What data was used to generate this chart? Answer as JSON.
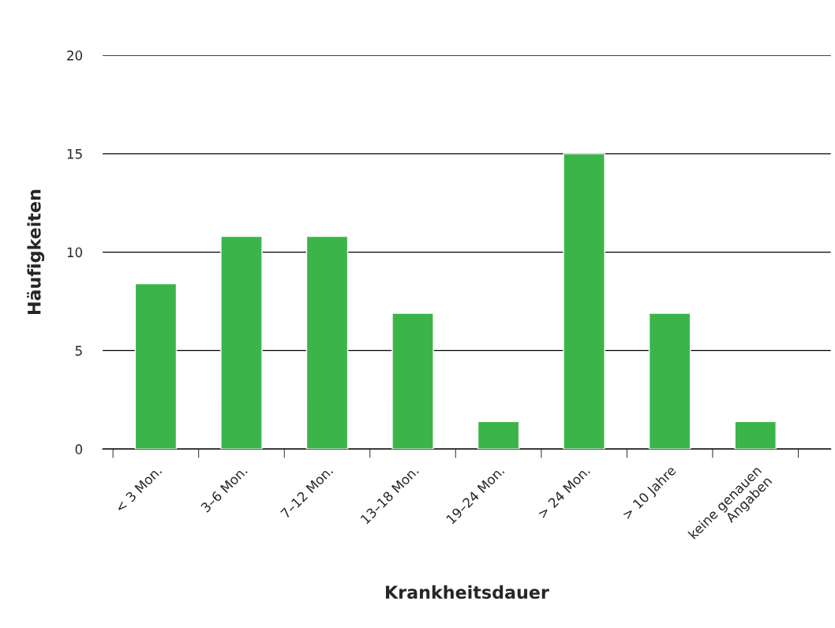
{
  "chart_data": {
    "type": "bar",
    "xlabel": "Krankheitsdauer",
    "ylabel": "Häufigkeiten",
    "categories": [
      "< 3 Mon.",
      "3–6 Mon.",
      "7–12 Mon.",
      "13–18 Mon.",
      "19–24 Mon.",
      "> 24 Mon.",
      "> 10 Jahre",
      "keine genauen\nAngaben"
    ],
    "values": [
      8.4,
      10.8,
      10.8,
      6.9,
      1.4,
      15,
      6.9,
      1.4
    ],
    "color": "#3bb54a",
    "ylim": [
      0,
      20
    ],
    "yticks": [
      0,
      5,
      10,
      15,
      20
    ],
    "grid": "y"
  }
}
